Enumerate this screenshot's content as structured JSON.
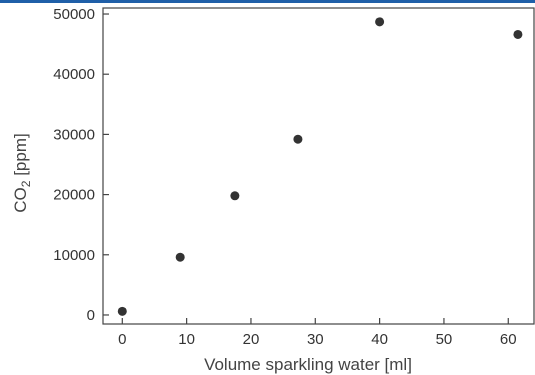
{
  "chart_data": {
    "type": "scatter",
    "title": "",
    "xlabel": "Volume sparkling water [ml]",
    "ylabel_main": "CO",
    "ylabel_sub": "2",
    "ylabel_tail": " [ppm]",
    "xlim": [
      -3,
      64
    ],
    "ylim": [
      -1500,
      51000
    ],
    "x_ticks": [
      0,
      10,
      20,
      30,
      40,
      50,
      60
    ],
    "y_ticks": [
      0,
      10000,
      20000,
      30000,
      40000,
      50000
    ],
    "grid": false,
    "marker_color": "#333333",
    "points": [
      {
        "x": 0,
        "y": 600
      },
      {
        "x": 9,
        "y": 9600
      },
      {
        "x": 17.5,
        "y": 19800
      },
      {
        "x": 27.3,
        "y": 29200
      },
      {
        "x": 40,
        "y": 48700
      },
      {
        "x": 61.5,
        "y": 46600
      }
    ]
  },
  "accent_color": "#1f5fa8"
}
